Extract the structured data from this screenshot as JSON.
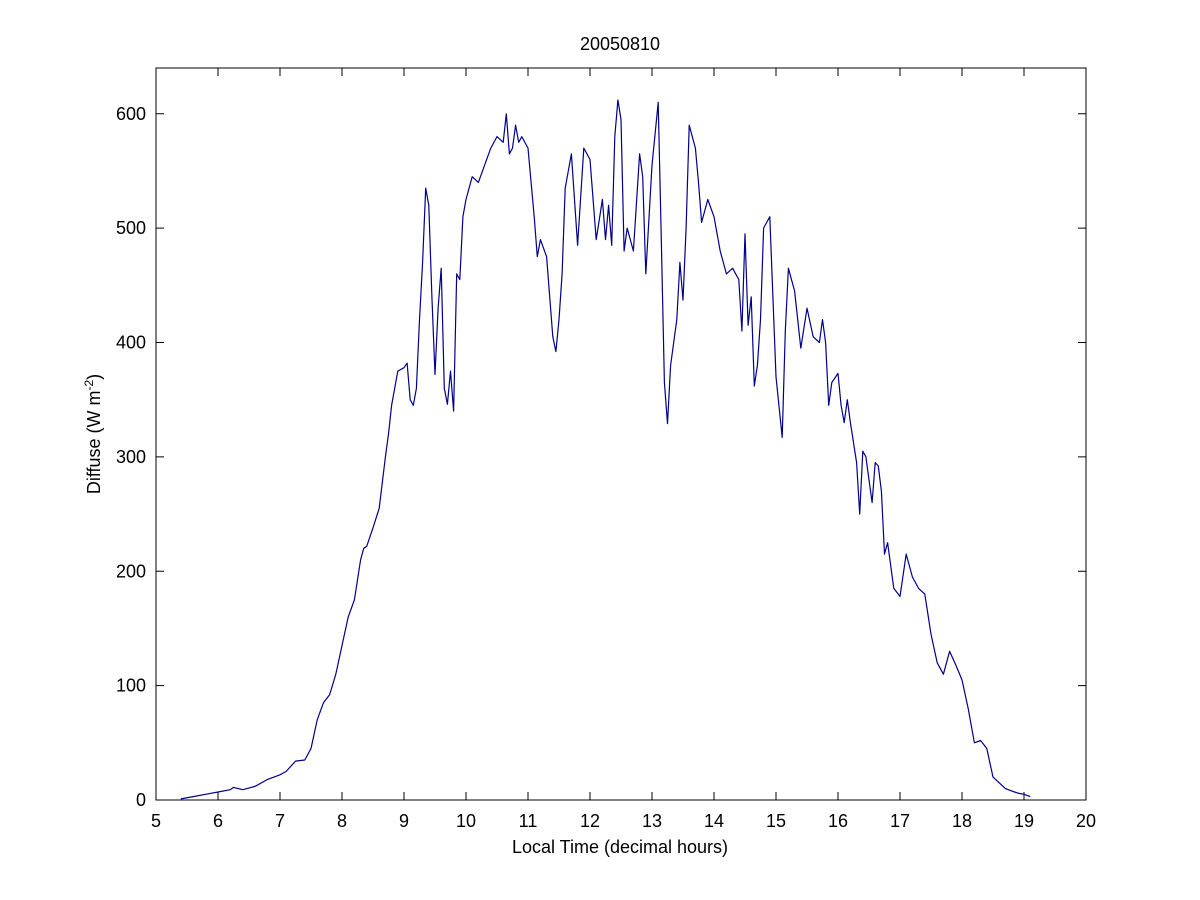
{
  "chart_data": {
    "type": "line",
    "title": "20050810",
    "xlabel": "Local Time (decimal hours)",
    "ylabel_main": "Diffuse (W m",
    "ylabel_sup": "-2",
    "ylabel_close": ")",
    "xlim": [
      5,
      20
    ],
    "ylim": [
      0,
      640
    ],
    "xticks": [
      5,
      6,
      7,
      8,
      9,
      10,
      11,
      12,
      13,
      14,
      15,
      16,
      17,
      18,
      19,
      20
    ],
    "yticks": [
      0,
      100,
      200,
      300,
      400,
      500,
      600
    ],
    "grid": false,
    "line_color": "#00008b",
    "series": [
      {
        "x": [
          5.4,
          5.6,
          5.8,
          6.0,
          6.2,
          6.25,
          6.4,
          6.6,
          6.8,
          7.0,
          7.1,
          7.25,
          7.4,
          7.5,
          7.6,
          7.7,
          7.8,
          7.9,
          8.0,
          8.1,
          8.2,
          8.3,
          8.35,
          8.4,
          8.5,
          8.6,
          8.7,
          8.75,
          8.8,
          8.9,
          9.0,
          9.05,
          9.1,
          9.15,
          9.2,
          9.25,
          9.3,
          9.35,
          9.4,
          9.45,
          9.5,
          9.55,
          9.6,
          9.65,
          9.7,
          9.75,
          9.8,
          9.85,
          9.9,
          9.95,
          10.0,
          10.1,
          10.2,
          10.3,
          10.4,
          10.5,
          10.6,
          10.65,
          10.7,
          10.75,
          10.8,
          10.85,
          10.9,
          11.0,
          11.1,
          11.15,
          11.2,
          11.3,
          11.4,
          11.45,
          11.5,
          11.55,
          11.6,
          11.7,
          11.8,
          11.9,
          12.0,
          12.1,
          12.2,
          12.25,
          12.3,
          12.35,
          12.4,
          12.45,
          12.5,
          12.55,
          12.6,
          12.7,
          12.8,
          12.85,
          12.9,
          13.0,
          13.1,
          13.15,
          13.2,
          13.25,
          13.3,
          13.4,
          13.45,
          13.5,
          13.55,
          13.6,
          13.7,
          13.75,
          13.8,
          13.9,
          14.0,
          14.1,
          14.2,
          14.3,
          14.4,
          14.45,
          14.5,
          14.55,
          14.6,
          14.65,
          14.7,
          14.75,
          14.8,
          14.85,
          14.9,
          15.0,
          15.1,
          15.15,
          15.2,
          15.3,
          15.4,
          15.5,
          15.6,
          15.7,
          15.75,
          15.8,
          15.85,
          15.9,
          16.0,
          16.05,
          16.1,
          16.15,
          16.2,
          16.3,
          16.35,
          16.4,
          16.45,
          16.5,
          16.55,
          16.6,
          16.65,
          16.7,
          16.75,
          16.8,
          16.9,
          17.0,
          17.1,
          17.2,
          17.3,
          17.4,
          17.5,
          17.6,
          17.7,
          17.8,
          17.9,
          18.0,
          18.1,
          18.2,
          18.3,
          18.4,
          18.5,
          18.6,
          18.7,
          18.8,
          18.9,
          19.0,
          19.1
        ],
        "y": [
          1,
          3,
          5,
          7,
          9,
          11,
          9,
          12,
          18,
          22,
          25,
          34,
          35,
          45,
          70,
          85,
          92,
          110,
          135,
          160,
          175,
          210,
          220,
          222,
          238,
          255,
          300,
          320,
          345,
          375,
          378,
          382,
          350,
          345,
          360,
          420,
          470,
          535,
          520,
          440,
          372,
          430,
          465,
          360,
          346,
          375,
          340,
          460,
          455,
          510,
          525,
          545,
          540,
          555,
          570,
          580,
          575,
          600,
          565,
          570,
          590,
          575,
          580,
          570,
          510,
          475,
          490,
          475,
          405,
          392,
          420,
          460,
          535,
          565,
          485,
          570,
          560,
          490,
          525,
          490,
          520,
          485,
          580,
          612,
          595,
          480,
          500,
          480,
          565,
          545,
          460,
          555,
          610,
          490,
          365,
          329,
          380,
          420,
          470,
          437,
          500,
          590,
          570,
          540,
          505,
          525,
          510,
          480,
          460,
          465,
          455,
          410,
          495,
          415,
          440,
          362,
          380,
          420,
          500,
          505,
          510,
          370,
          317,
          410,
          465,
          445,
          395,
          430,
          405,
          400,
          420,
          400,
          345,
          365,
          373,
          345,
          330,
          350,
          330,
          295,
          250,
          305,
          300,
          280,
          260,
          295,
          292,
          270,
          215,
          225,
          185,
          178,
          215,
          195,
          185,
          180,
          145,
          120,
          110,
          130,
          118,
          105,
          80,
          50,
          52,
          45,
          20,
          15,
          10,
          8,
          6,
          5,
          3
        ]
      }
    ]
  }
}
